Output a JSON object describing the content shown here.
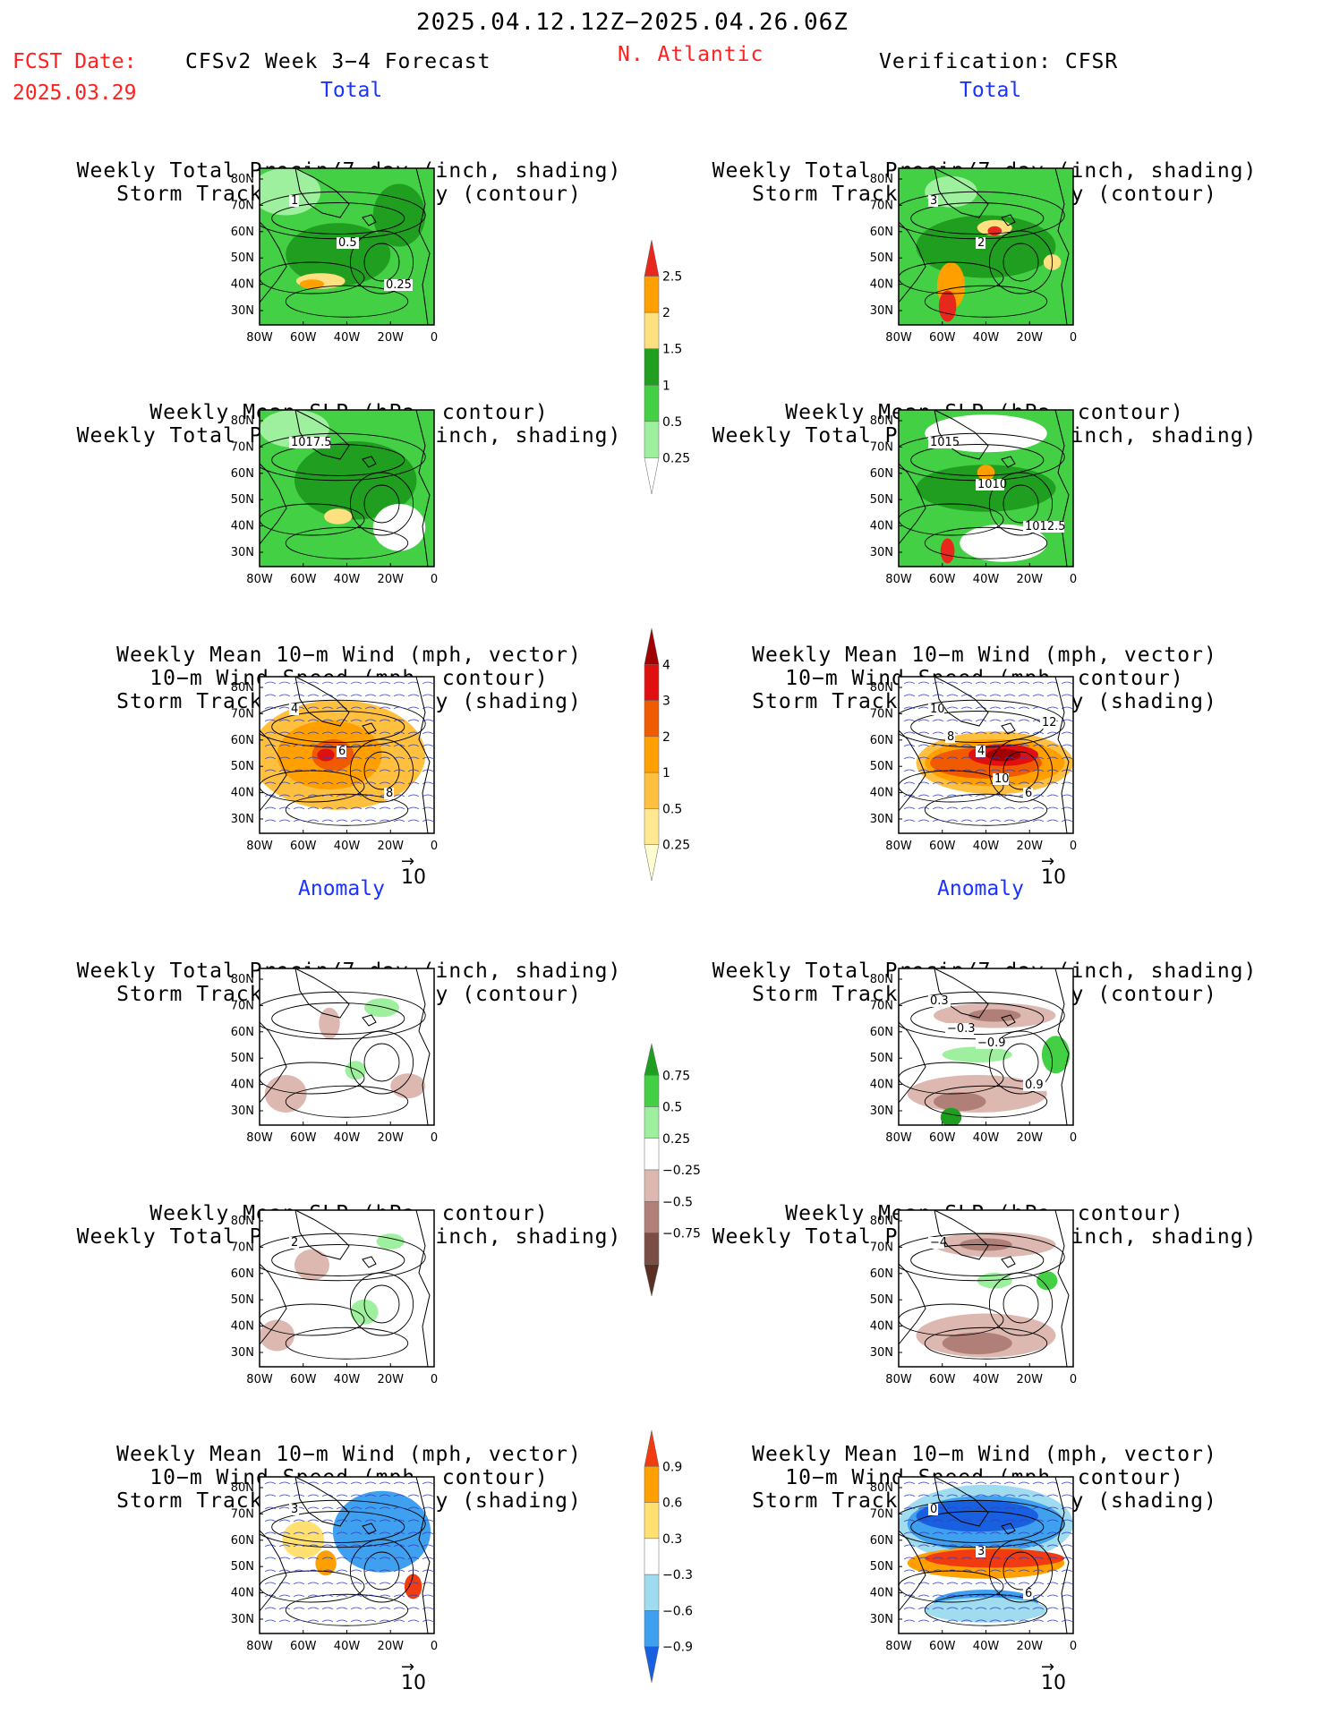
{
  "header": {
    "date_range": "2025.04.12.12Z−2025.04.26.06Z",
    "fcst_label": "FCST Date:",
    "fcst_date": "2025.03.29",
    "model": "CFSv2 Week 3−4 Forecast",
    "region": "N. Atlantic",
    "verification": "Verification: CFSR"
  },
  "sections": {
    "total": "Total",
    "anomaly": "Anomaly"
  },
  "titles": {
    "precip_storm": [
      "Weekly Total Precip/7−day (inch, shading)",
      "Storm Track Density/7−day (contour)"
    ],
    "slp_precip": [
      "Weekly Mean SLP (hPa, contour)",
      "Weekly Total Precip/7−day (inch, shading)"
    ],
    "wind_storm": [
      "Weekly Mean 10−m Wind (mph, vector)",
      "10−m Wind Speed (mph, contour)",
      "Storm Track Density/7−day (shading)"
    ]
  },
  "axes": {
    "lat_labels": [
      "80N",
      "70N",
      "60N",
      "50N",
      "40N",
      "30N"
    ],
    "lon_labels": [
      "80W",
      "60W",
      "40W",
      "20W",
      "0"
    ]
  },
  "vector_reference": "10",
  "colorbars": {
    "precip_total": {
      "labels": [
        "2.5",
        "2",
        "1.5",
        "1",
        "0.5",
        "0.25"
      ],
      "colors": [
        "#e8281c",
        "#ffa000",
        "#ffe080",
        "#1f9e1f",
        "#44d044",
        "#9ef09e",
        "#ffffff"
      ]
    },
    "storm_total": {
      "labels": [
        "4",
        "3",
        "2",
        "1",
        "0.5",
        "0.25"
      ],
      "colors": [
        "#a00000",
        "#e01010",
        "#f05a00",
        "#ffa000",
        "#ffc040",
        "#ffe890",
        "#fffcd0"
      ]
    },
    "precip_anom": {
      "labels": [
        "0.75",
        "0.5",
        "0.25",
        "−0.25",
        "−0.5",
        "−0.75"
      ],
      "colors": [
        "#1f9e1f",
        "#44d044",
        "#9ef09e",
        "#ffffff",
        "#ddb8b0",
        "#b08078",
        "#7a4e44",
        "#5a3024"
      ]
    },
    "storm_anom": {
      "labels": [
        "0.9",
        "0.6",
        "0.3",
        "−0.3",
        "−0.6",
        "−0.9"
      ],
      "colors": [
        "#f03c10",
        "#ffa000",
        "#ffe070",
        "#ffffff",
        "#a0dcf0",
        "#40a0f0",
        "#1860e0"
      ]
    }
  },
  "panels": [
    {
      "id": "fc-total-precip",
      "contour_labels": [
        "1",
        "0.5",
        "0.25"
      ]
    },
    {
      "id": "vf-total-precip",
      "contour_labels": [
        "3",
        "2"
      ]
    },
    {
      "id": "fc-total-slp",
      "contour_labels": [
        "1017.5"
      ]
    },
    {
      "id": "vf-total-slp",
      "contour_labels": [
        "1015",
        "1010",
        "1012.5"
      ]
    },
    {
      "id": "fc-total-wind",
      "contour_labels": [
        "4",
        "6",
        "8"
      ]
    },
    {
      "id": "vf-total-wind",
      "contour_labels": [
        "10",
        "4",
        "6",
        "8",
        "10",
        "12"
      ]
    },
    {
      "id": "fc-anom-precip",
      "contour_labels": []
    },
    {
      "id": "vf-anom-precip",
      "contour_labels": [
        "0.3",
        "−0.9",
        "0.9",
        "−0.3"
      ]
    },
    {
      "id": "fc-anom-slp",
      "contour_labels": [
        "2"
      ]
    },
    {
      "id": "vf-anom-slp",
      "contour_labels": [
        "−4"
      ]
    },
    {
      "id": "fc-anom-wind",
      "contour_labels": [
        "3"
      ]
    },
    {
      "id": "vf-anom-wind",
      "contour_labels": [
        "0",
        "3",
        "6"
      ]
    }
  ]
}
